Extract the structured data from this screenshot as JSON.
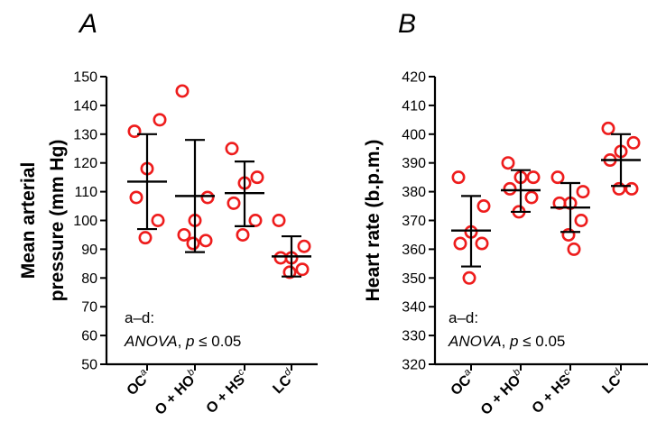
{
  "colors": {
    "points": "#ee1c1c",
    "axes": "#000000",
    "bars": "#000000"
  },
  "chart_data": [
    {
      "type": "scatter",
      "panel": "A",
      "ylabel_lines": [
        "Mean arterial",
        "pressure (mm Hg)"
      ],
      "ylim": [
        50,
        150
      ],
      "yticks": [
        50,
        60,
        70,
        80,
        90,
        100,
        110,
        120,
        130,
        140,
        150
      ],
      "categories": [
        {
          "label": "OC",
          "sup": "a"
        },
        {
          "label": "O + HO",
          "sup": "b"
        },
        {
          "label": "O + HS",
          "sup": "c"
        },
        {
          "label": "LC",
          "sup": "d"
        }
      ],
      "groups": [
        {
          "points": [
            131,
            135,
            118,
            108,
            100,
            94
          ],
          "mean": 113.5,
          "sd_low": 97,
          "sd_high": 130
        },
        {
          "points": [
            145,
            108,
            100,
            95,
            93,
            92
          ],
          "mean": 108.5,
          "sd_low": 89,
          "sd_high": 128
        },
        {
          "points": [
            125,
            115,
            113,
            106,
            100,
            95
          ],
          "mean": 109.5,
          "sd_low": 98,
          "sd_high": 120.5
        },
        {
          "points": [
            100,
            91,
            87,
            87,
            83,
            82
          ],
          "mean": 87.5,
          "sd_low": 80.5,
          "sd_high": 94.5
        }
      ],
      "annotation_line1": "a–d:",
      "annotation_italic": "ANOVA",
      "annotation_mid": ", ",
      "annotation_p": "p",
      "annotation_rest": " ≤ 0.05"
    },
    {
      "type": "scatter",
      "panel": "B",
      "ylabel_lines": [
        "Heart rate (b.p.m.)"
      ],
      "ylim": [
        320,
        420
      ],
      "yticks": [
        320,
        330,
        340,
        350,
        360,
        370,
        380,
        390,
        400,
        410,
        420
      ],
      "categories": [
        {
          "label": "OC",
          "sup": "a"
        },
        {
          "label": "O + HO",
          "sup": "b"
        },
        {
          "label": "O + HS",
          "sup": "c"
        },
        {
          "label": "LC",
          "sup": "d"
        }
      ],
      "groups": [
        {
          "points": [
            385,
            375,
            366,
            362,
            362,
            350
          ],
          "mean": 366.5,
          "sd_low": 354,
          "sd_high": 378.5
        },
        {
          "points": [
            390,
            385,
            385,
            381,
            378,
            373
          ],
          "mean": 380.5,
          "sd_low": 373,
          "sd_high": 387.5
        },
        {
          "points": [
            385,
            380,
            376,
            376,
            370,
            365,
            360
          ],
          "mean": 374.5,
          "sd_low": 366,
          "sd_high": 383
        },
        {
          "points": [
            402,
            397,
            394,
            391,
            381,
            381
          ],
          "mean": 391,
          "sd_low": 382,
          "sd_high": 400
        }
      ],
      "annotation_line1": "a–d:",
      "annotation_italic": "ANOVA",
      "annotation_mid": ", ",
      "annotation_p": "p",
      "annotation_rest": " ≤ 0.05"
    }
  ]
}
